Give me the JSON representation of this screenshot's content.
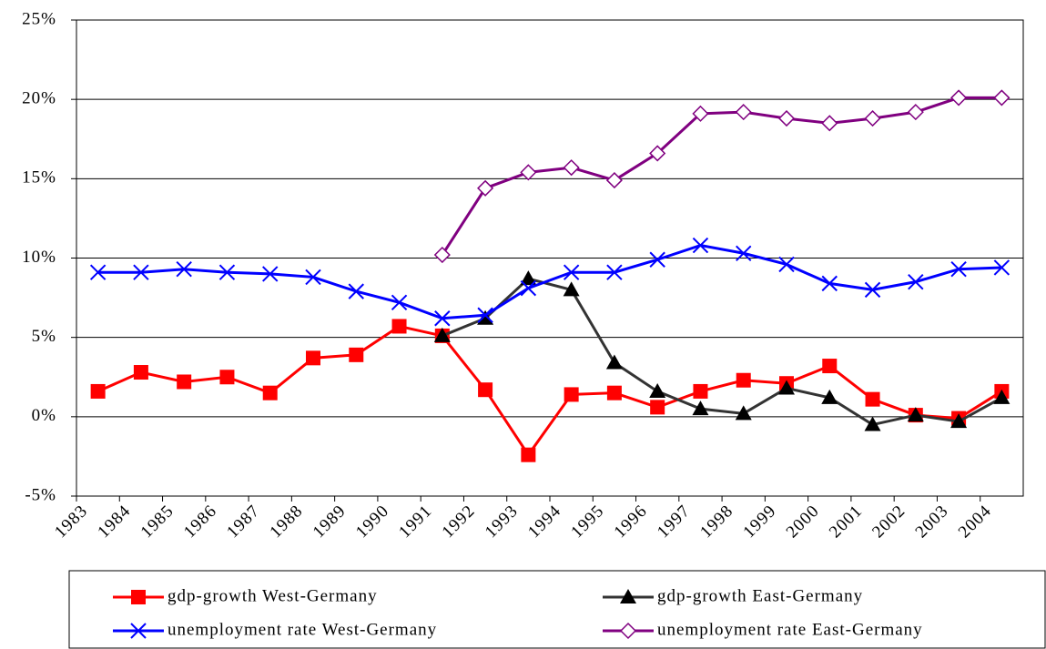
{
  "chart_data": {
    "type": "line",
    "categories": [
      "1983",
      "1984",
      "1985",
      "1986",
      "1987",
      "1988",
      "1989",
      "1990",
      "1991",
      "1992",
      "1993",
      "1994",
      "1995",
      "1996",
      "1997",
      "1998",
      "1999",
      "2000",
      "2001",
      "2002",
      "2003",
      "2004"
    ],
    "series": [
      {
        "name": "gdp-growth West-Germany",
        "color": "#ff0000",
        "marker": "square",
        "values": [
          1.6,
          2.8,
          2.2,
          2.5,
          1.5,
          3.7,
          3.9,
          5.7,
          5.1,
          1.7,
          -2.4,
          1.4,
          1.5,
          0.6,
          1.6,
          2.3,
          2.1,
          3.2,
          1.1,
          0.1,
          -0.1,
          1.6
        ]
      },
      {
        "name": "gdp-growth East-Germany",
        "color": "#333333",
        "marker": "triangle",
        "values": [
          null,
          null,
          null,
          null,
          null,
          null,
          null,
          null,
          5.1,
          6.2,
          8.7,
          8.0,
          3.4,
          1.6,
          0.5,
          0.2,
          1.8,
          1.2,
          -0.5,
          0.1,
          -0.3,
          1.2
        ]
      },
      {
        "name": "unemployment rate West-Germany",
        "color": "#0000ff",
        "marker": "x",
        "values": [
          9.1,
          9.1,
          9.3,
          9.1,
          9.0,
          8.8,
          7.9,
          7.2,
          6.2,
          6.4,
          8.1,
          9.1,
          9.1,
          9.9,
          10.8,
          10.3,
          9.6,
          8.4,
          8.0,
          8.5,
          9.3,
          9.4
        ]
      },
      {
        "name": "unemployment rate East-Germany",
        "color": "#800080",
        "marker": "diamond",
        "values": [
          null,
          null,
          null,
          null,
          null,
          null,
          null,
          null,
          10.2,
          14.4,
          15.4,
          15.7,
          14.9,
          16.6,
          19.1,
          19.2,
          18.8,
          18.5,
          18.8,
          19.2,
          20.1,
          20.1
        ]
      }
    ],
    "ylim": [
      -5,
      25
    ],
    "yticks": [
      {
        "value": -5,
        "label": "-5%"
      },
      {
        "value": 0,
        "label": "0%"
      },
      {
        "value": 5,
        "label": "5%"
      },
      {
        "value": 10,
        "label": "10%"
      },
      {
        "value": 15,
        "label": "15%"
      },
      {
        "value": 20,
        "label": "20%"
      },
      {
        "value": 25,
        "label": "25%"
      }
    ],
    "grid": true,
    "legend": "bottom"
  }
}
